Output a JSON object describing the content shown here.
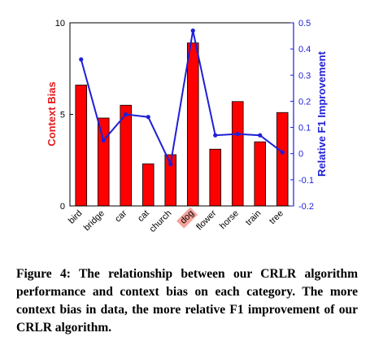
{
  "chart_data": {
    "type": "bar+line",
    "categories": [
      "bird",
      "bridge",
      "car",
      "cat",
      "church",
      "dog",
      "flower",
      "horse",
      "train",
      "tree"
    ],
    "highlighted_category": "dog",
    "series": [
      {
        "name": "Context Bias",
        "type": "bar",
        "axis": "left",
        "color": "#ff0000",
        "values": [
          6.6,
          4.8,
          5.5,
          2.3,
          2.8,
          8.9,
          3.1,
          5.7,
          3.5,
          5.1
        ]
      },
      {
        "name": "Relative F1 Improvement",
        "type": "line",
        "axis": "right",
        "color": "#1f1fd6",
        "values": [
          0.36,
          0.05,
          0.15,
          0.14,
          -0.04,
          0.47,
          0.07,
          0.075,
          0.07,
          0.005
        ]
      }
    ],
    "ylabel_left": "Context Bias",
    "ylabel_right": "Relative F1 Improvement",
    "ylim_left": [
      0,
      10
    ],
    "ylim_right": [
      -0.2,
      0.5
    ],
    "yticks_left": [
      "0",
      "5",
      "10"
    ],
    "yticks_right": [
      "-0.2",
      "-0.1",
      "0",
      "0.1",
      "0.2",
      "0.3",
      "0.4",
      "0.5"
    ],
    "yticks_right_values": [
      -0.2,
      -0.1,
      0,
      0.1,
      0.2,
      0.3,
      0.4,
      0.5
    ],
    "yticks_left_values": [
      0,
      5,
      10
    ],
    "grid": false,
    "colors": {
      "bar": "#ff0000",
      "line": "#1f1fd6",
      "highlight": "#f4a29a"
    }
  },
  "caption": "Figure 4: The relationship between our CRLR algorithm performance and context bias on each category. The more context bias in data, the more relative F1 improvement of our CRLR algorithm."
}
